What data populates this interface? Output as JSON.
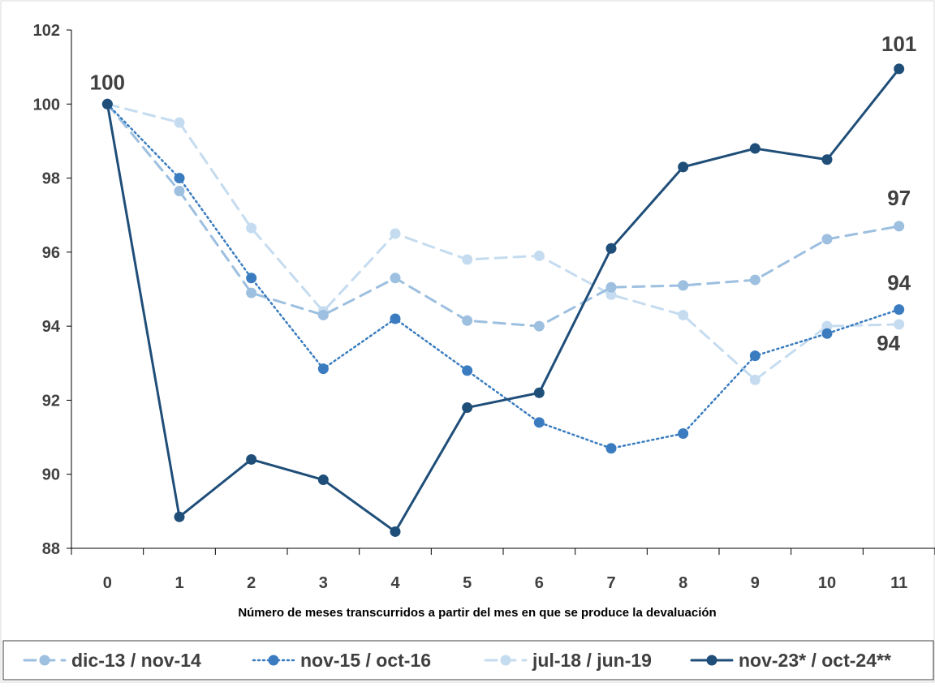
{
  "chart_data": {
    "type": "line",
    "title": "",
    "xlabel": "Número de meses transcurridos a partir del mes en que se produce la devaluación",
    "ylabel": "",
    "categories": [
      "0",
      "1",
      "2",
      "3",
      "4",
      "5",
      "6",
      "7",
      "8",
      "9",
      "10",
      "11"
    ],
    "ylim": [
      88,
      102
    ],
    "yticks": [
      88,
      90,
      92,
      94,
      96,
      98,
      100,
      102
    ],
    "grid": false,
    "legend_position": "bottom",
    "series": [
      {
        "name": "dic-13 / nov-14",
        "style": "dashed",
        "color": "#9dbfe0",
        "values": [
          100,
          97.65,
          94.9,
          94.3,
          95.3,
          94.15,
          94.0,
          95.05,
          95.1,
          95.25,
          96.35,
          96.7
        ]
      },
      {
        "name": "nov-15 / oct-16",
        "style": "dotted",
        "color": "#3a7cbf",
        "values": [
          100,
          98.0,
          95.3,
          92.85,
          94.2,
          92.8,
          91.4,
          90.7,
          91.1,
          93.2,
          93.8,
          94.45
        ]
      },
      {
        "name": "jul-18 / jun-19",
        "style": "dashed",
        "color": "#c5dcf0",
        "values": [
          100,
          99.5,
          96.65,
          94.4,
          96.5,
          95.8,
          95.9,
          94.85,
          94.3,
          92.55,
          94.0,
          94.05
        ]
      },
      {
        "name": "nov-23* / oct-24**",
        "style": "solid",
        "color": "#1f4e79",
        "values": [
          100,
          88.85,
          90.4,
          89.85,
          88.45,
          91.8,
          92.2,
          96.1,
          98.3,
          98.8,
          98.5,
          100.95
        ]
      }
    ],
    "annotations": [
      {
        "text": "100",
        "x": "0",
        "y": 100
      },
      {
        "text": "101",
        "x": "11",
        "y": 100.95
      },
      {
        "text": "97",
        "x": "11",
        "y": 96.7
      },
      {
        "text": "94",
        "x": "11",
        "y": 94.45
      },
      {
        "text": "94",
        "x": "11",
        "y": 94.05
      }
    ]
  }
}
